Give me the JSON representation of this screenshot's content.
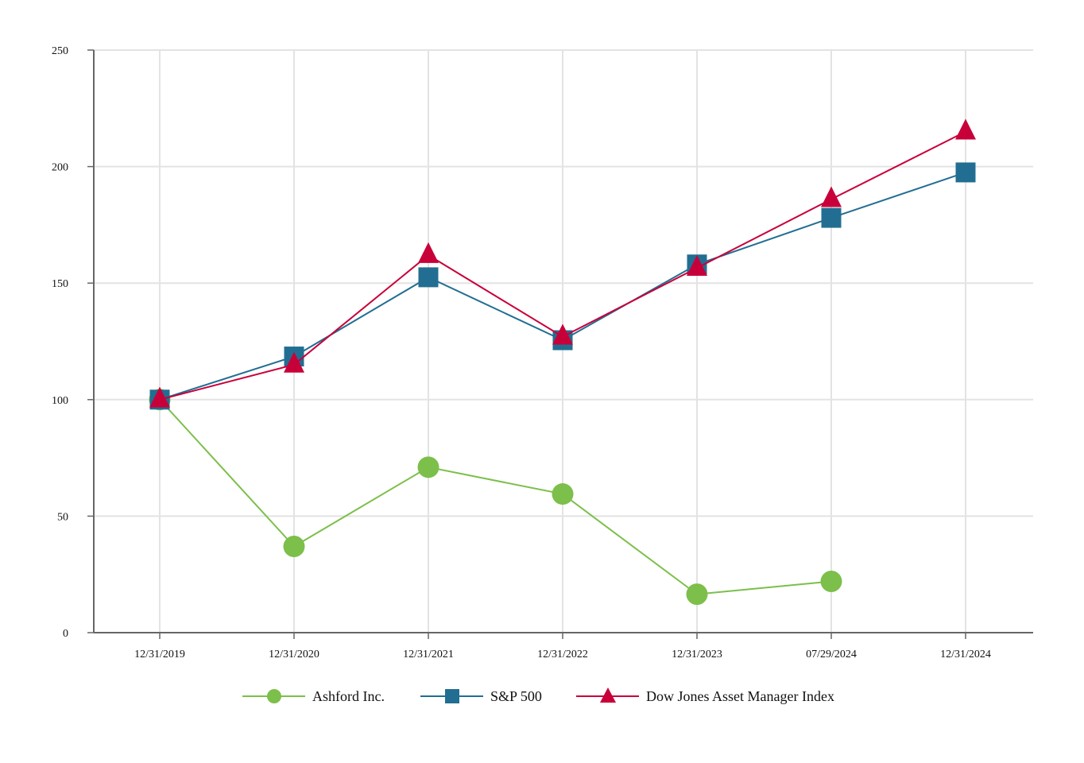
{
  "chart_data": {
    "type": "line",
    "title": "",
    "xlabel": "",
    "ylabel": "",
    "categories": [
      "12/31/2019",
      "12/31/2020",
      "12/31/2021",
      "12/31/2022",
      "12/31/2023",
      "07/29/2024",
      "12/31/2024"
    ],
    "ylim": [
      0,
      250
    ],
    "yticks": [
      "0",
      "50",
      "100",
      "150",
      "200",
      "250"
    ],
    "grid": true,
    "legend_position": "bottom",
    "series": [
      {
        "name": "Ashford Inc.",
        "marker": "circle",
        "color": "#7cbf4a",
        "values": [
          100,
          37,
          71,
          59.5,
          16.5,
          22,
          null
        ]
      },
      {
        "name": "S&P 500",
        "marker": "square",
        "color": "#226e92",
        "values": [
          100,
          118.5,
          152.5,
          125.5,
          158,
          178,
          197.5
        ]
      },
      {
        "name": "Dow Jones Asset Manager Index",
        "marker": "triangle",
        "color": "#c8003a",
        "values": [
          100,
          115,
          162,
          127,
          156.5,
          186,
          215
        ]
      }
    ]
  }
}
